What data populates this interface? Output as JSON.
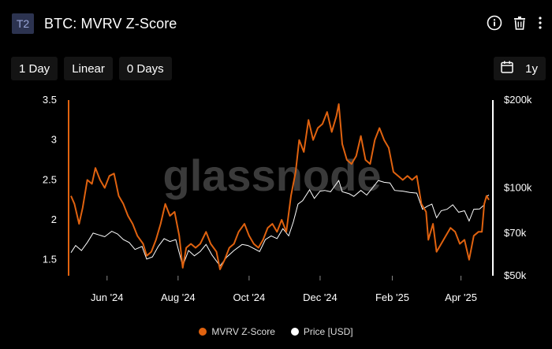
{
  "header": {
    "badge": "T2",
    "title": "BTC: MVRV Z-Score",
    "icons": [
      "info-icon",
      "trash-icon",
      "more-vertical-icon"
    ]
  },
  "toolbar": {
    "resolution": "1 Day",
    "scale": "Linear",
    "offset": "0 Days",
    "range": "1y",
    "range_icon": "calendar-icon"
  },
  "watermark": "glassnode",
  "colors": {
    "background": "#000000",
    "zscore": "#e0620f",
    "price": "#ffffff",
    "badge_bg": "#2c3350",
    "button_bg": "#141414"
  },
  "legend": {
    "zscore": "MVRV Z-Score",
    "price": "Price [USD]"
  },
  "chart_data": {
    "type": "line",
    "x_tick_labels": [
      "Jun '24",
      "Aug '24",
      "Oct '24",
      "Dec '24",
      "Feb '25",
      "Apr '25"
    ],
    "x_range": [
      "2024-05-01",
      "2025-04-25"
    ],
    "left_axis": {
      "ticks": [
        3.5,
        3,
        2.5,
        2,
        1.5
      ],
      "ylim": [
        1.3,
        3.5
      ]
    },
    "right_axis": {
      "scale": "log",
      "tick_labels": [
        "$200k",
        "$100k",
        "$70k",
        "$50k"
      ],
      "tick_values": [
        200000,
        100000,
        70000,
        50000
      ],
      "ylim": [
        50000,
        200000
      ]
    },
    "grid": false,
    "legend_position": "bottom-center",
    "series": [
      {
        "name": "MVRV Z-Score",
        "axis": "left",
        "color": "#e0620f",
        "points": [
          [
            "2024-05-01",
            2.3
          ],
          [
            "2024-05-04",
            2.2
          ],
          [
            "2024-05-08",
            1.95
          ],
          [
            "2024-05-11",
            2.15
          ],
          [
            "2024-05-15",
            2.5
          ],
          [
            "2024-05-19",
            2.45
          ],
          [
            "2024-05-22",
            2.65
          ],
          [
            "2024-05-26",
            2.5
          ],
          [
            "2024-05-30",
            2.4
          ],
          [
            "2024-06-03",
            2.55
          ],
          [
            "2024-06-07",
            2.58
          ],
          [
            "2024-06-11",
            2.3
          ],
          [
            "2024-06-15",
            2.2
          ],
          [
            "2024-06-19",
            2.05
          ],
          [
            "2024-06-23",
            1.95
          ],
          [
            "2024-06-27",
            1.8
          ],
          [
            "2024-07-02",
            1.7
          ],
          [
            "2024-07-05",
            1.55
          ],
          [
            "2024-07-09",
            1.6
          ],
          [
            "2024-07-13",
            1.75
          ],
          [
            "2024-07-17",
            1.95
          ],
          [
            "2024-07-21",
            2.2
          ],
          [
            "2024-07-25",
            2.05
          ],
          [
            "2024-07-29",
            2.1
          ],
          [
            "2024-08-02",
            1.8
          ],
          [
            "2024-08-05",
            1.4
          ],
          [
            "2024-08-08",
            1.65
          ],
          [
            "2024-08-12",
            1.7
          ],
          [
            "2024-08-16",
            1.65
          ],
          [
            "2024-08-20",
            1.7
          ],
          [
            "2024-08-25",
            1.85
          ],
          [
            "2024-08-29",
            1.7
          ],
          [
            "2024-09-03",
            1.6
          ],
          [
            "2024-09-06",
            1.38
          ],
          [
            "2024-09-10",
            1.5
          ],
          [
            "2024-09-14",
            1.65
          ],
          [
            "2024-09-18",
            1.7
          ],
          [
            "2024-09-22",
            1.85
          ],
          [
            "2024-09-27",
            1.95
          ],
          [
            "2024-10-01",
            1.8
          ],
          [
            "2024-10-05",
            1.7
          ],
          [
            "2024-10-09",
            1.65
          ],
          [
            "2024-10-13",
            1.75
          ],
          [
            "2024-10-17",
            1.9
          ],
          [
            "2024-10-21",
            1.95
          ],
          [
            "2024-10-25",
            1.85
          ],
          [
            "2024-10-29",
            2.0
          ],
          [
            "2024-11-02",
            1.85
          ],
          [
            "2024-11-06",
            2.3
          ],
          [
            "2024-11-10",
            2.6
          ],
          [
            "2024-11-13",
            3.0
          ],
          [
            "2024-11-17",
            2.85
          ],
          [
            "2024-11-21",
            3.25
          ],
          [
            "2024-11-25",
            3.0
          ],
          [
            "2024-11-29",
            3.15
          ],
          [
            "2024-12-03",
            3.2
          ],
          [
            "2024-12-07",
            3.35
          ],
          [
            "2024-12-11",
            3.1
          ],
          [
            "2024-12-15",
            3.3
          ],
          [
            "2024-12-17",
            3.45
          ],
          [
            "2024-12-20",
            2.95
          ],
          [
            "2024-12-24",
            2.75
          ],
          [
            "2024-12-28",
            2.7
          ],
          [
            "2025-01-01",
            2.8
          ],
          [
            "2025-01-05",
            3.05
          ],
          [
            "2025-01-09",
            2.75
          ],
          [
            "2025-01-13",
            2.7
          ],
          [
            "2025-01-17",
            3.0
          ],
          [
            "2025-01-21",
            3.15
          ],
          [
            "2025-01-25",
            3.0
          ],
          [
            "2025-01-29",
            2.9
          ],
          [
            "2025-02-02",
            2.6
          ],
          [
            "2025-02-06",
            2.55
          ],
          [
            "2025-02-10",
            2.5
          ],
          [
            "2025-02-14",
            2.55
          ],
          [
            "2025-02-18",
            2.5
          ],
          [
            "2025-02-22",
            2.55
          ],
          [
            "2025-02-26",
            2.2
          ],
          [
            "2025-03-02",
            2.1
          ],
          [
            "2025-03-04",
            1.75
          ],
          [
            "2025-03-08",
            1.95
          ],
          [
            "2025-03-11",
            1.6
          ],
          [
            "2025-03-15",
            1.7
          ],
          [
            "2025-03-19",
            1.8
          ],
          [
            "2025-03-23",
            1.9
          ],
          [
            "2025-03-27",
            1.85
          ],
          [
            "2025-03-31",
            1.7
          ],
          [
            "2025-04-04",
            1.75
          ],
          [
            "2025-04-08",
            1.5
          ],
          [
            "2025-04-12",
            1.8
          ],
          [
            "2025-04-16",
            1.85
          ],
          [
            "2025-04-19",
            1.85
          ],
          [
            "2025-04-21",
            2.2
          ],
          [
            "2025-04-23",
            2.3
          ],
          [
            "2025-04-25",
            2.25
          ]
        ]
      },
      {
        "name": "Price [USD]",
        "axis": "right",
        "color": "#ffffff",
        "points": [
          [
            "2024-05-01",
            60000
          ],
          [
            "2024-05-05",
            63500
          ],
          [
            "2024-05-10",
            61000
          ],
          [
            "2024-05-15",
            65000
          ],
          [
            "2024-05-20",
            70000
          ],
          [
            "2024-05-25",
            69000
          ],
          [
            "2024-05-30",
            68000
          ],
          [
            "2024-06-05",
            71000
          ],
          [
            "2024-06-10",
            69500
          ],
          [
            "2024-06-15",
            66500
          ],
          [
            "2024-06-20",
            65000
          ],
          [
            "2024-06-25",
            61500
          ],
          [
            "2024-07-01",
            63000
          ],
          [
            "2024-07-05",
            57000
          ],
          [
            "2024-07-10",
            58000
          ],
          [
            "2024-07-15",
            63000
          ],
          [
            "2024-07-20",
            67000
          ],
          [
            "2024-07-25",
            65500
          ],
          [
            "2024-07-30",
            66500
          ],
          [
            "2024-08-05",
            54000
          ],
          [
            "2024-08-10",
            61000
          ],
          [
            "2024-08-15",
            58500
          ],
          [
            "2024-08-20",
            60500
          ],
          [
            "2024-08-25",
            64000
          ],
          [
            "2024-08-30",
            59000
          ],
          [
            "2024-09-06",
            54000
          ],
          [
            "2024-09-12",
            58000
          ],
          [
            "2024-09-18",
            61000
          ],
          [
            "2024-09-25",
            64000
          ],
          [
            "2024-09-30",
            63500
          ],
          [
            "2024-10-05",
            62000
          ],
          [
            "2024-10-10",
            60500
          ],
          [
            "2024-10-15",
            66500
          ],
          [
            "2024-10-20",
            68500
          ],
          [
            "2024-10-25",
            67000
          ],
          [
            "2024-10-30",
            72500
          ],
          [
            "2024-11-04",
            68500
          ],
          [
            "2024-11-08",
            76500
          ],
          [
            "2024-11-12",
            88000
          ],
          [
            "2024-11-16",
            90500
          ],
          [
            "2024-11-22",
            98500
          ],
          [
            "2024-11-26",
            92000
          ],
          [
            "2024-12-01",
            97500
          ],
          [
            "2024-12-05",
            98000
          ],
          [
            "2024-12-10",
            97000
          ],
          [
            "2024-12-17",
            106000
          ],
          [
            "2024-12-20",
            97000
          ],
          [
            "2024-12-26",
            95500
          ],
          [
            "2024-12-30",
            93500
          ],
          [
            "2025-01-05",
            98000
          ],
          [
            "2025-01-10",
            94500
          ],
          [
            "2025-01-15",
            100000
          ],
          [
            "2025-01-20",
            106000
          ],
          [
            "2025-01-25",
            104500
          ],
          [
            "2025-01-30",
            104000
          ],
          [
            "2025-02-03",
            98000
          ],
          [
            "2025-02-10",
            97500
          ],
          [
            "2025-02-16",
            96500
          ],
          [
            "2025-02-22",
            96000
          ],
          [
            "2025-02-27",
            84500
          ],
          [
            "2025-03-03",
            86500
          ],
          [
            "2025-03-07",
            88000
          ],
          [
            "2025-03-11",
            79000
          ],
          [
            "2025-03-15",
            83500
          ],
          [
            "2025-03-20",
            84500
          ],
          [
            "2025-03-25",
            87500
          ],
          [
            "2025-03-30",
            82500
          ],
          [
            "2025-04-04",
            83500
          ],
          [
            "2025-04-08",
            77000
          ],
          [
            "2025-04-12",
            84500
          ],
          [
            "2025-04-17",
            84700
          ],
          [
            "2025-04-21",
            87500
          ],
          [
            "2025-04-23",
            93500
          ],
          [
            "2025-04-25",
            94500
          ]
        ]
      }
    ]
  }
}
